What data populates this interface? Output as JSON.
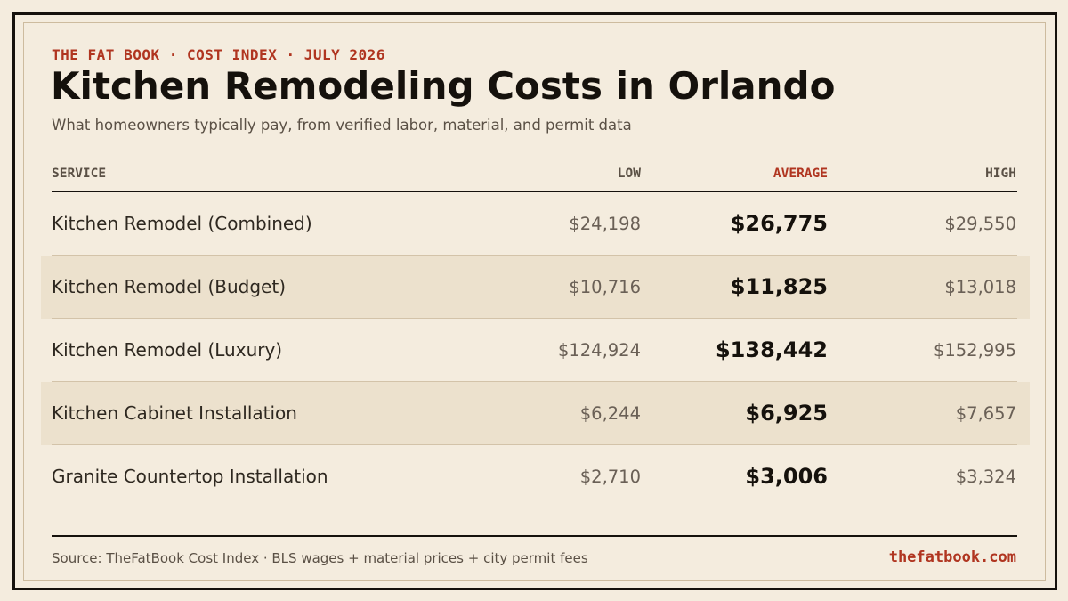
{
  "header": {
    "eyebrow": "THE FAT BOOK · COST INDEX · JULY 2026",
    "title": "Kitchen Remodeling Costs in Orlando",
    "subtitle": "What homeowners typically pay, from verified labor, material, and permit data"
  },
  "table": {
    "columns": {
      "service": "SERVICE",
      "low": "LOW",
      "average": "AVERAGE",
      "high": "HIGH"
    },
    "rows": [
      {
        "service": "Kitchen Remodel (Combined)",
        "low": "$24,198",
        "average": "$26,775",
        "high": "$29,550"
      },
      {
        "service": "Kitchen Remodel (Budget)",
        "low": "$10,716",
        "average": "$11,825",
        "high": "$13,018"
      },
      {
        "service": "Kitchen Remodel (Luxury)",
        "low": "$124,924",
        "average": "$138,442",
        "high": "$152,995"
      },
      {
        "service": "Kitchen Cabinet Installation",
        "low": "$6,244",
        "average": "$6,925",
        "high": "$7,657"
      },
      {
        "service": "Granite Countertop Installation",
        "low": "$2,710",
        "average": "$3,006",
        "high": "$3,324"
      }
    ]
  },
  "footer": {
    "source": "Source: TheFatBook Cost Index · BLS wages + material prices + city permit fees",
    "site": "thefatbook.com"
  },
  "colors": {
    "background": "#f4ecde",
    "accent": "#b03520",
    "ink": "#15110c",
    "row_shade": "#ece1cd"
  }
}
